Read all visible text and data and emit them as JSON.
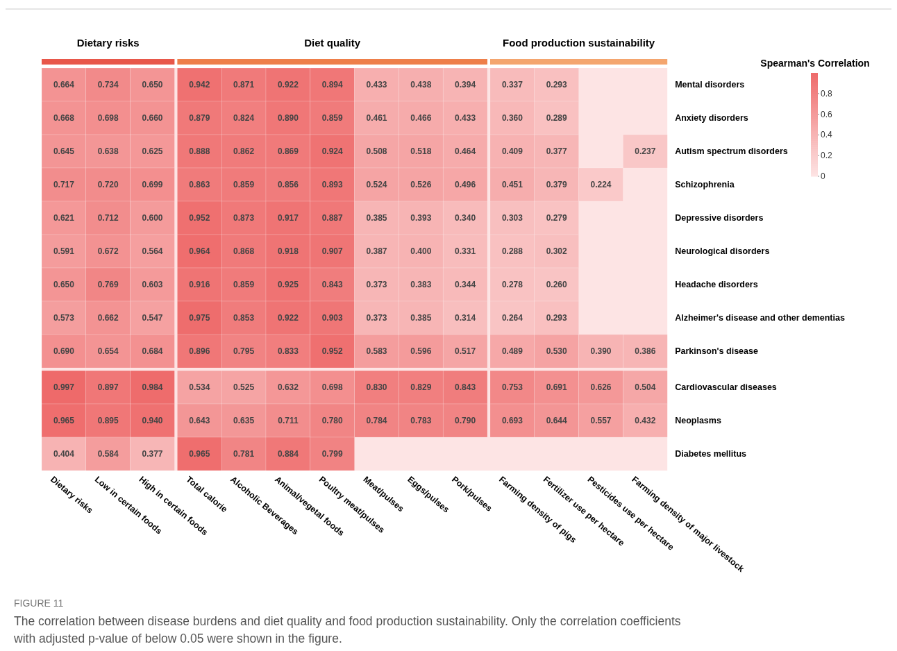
{
  "chart_data": {
    "type": "heatmap",
    "categories": [
      "Dietary risks",
      "Low in certain foods",
      "High in certain foods",
      "Total calorie",
      "Alcoholic Beverages",
      "Animal/vegetal foods",
      "Poultry meat/pulses",
      "Meat/pulses",
      "Eggs/pulses",
      "Pork/pulses",
      "Farming density of pigs",
      "Fertilizer use per hectare",
      "Pesticides use per hectare",
      "Farming density of major livestock"
    ],
    "y_categories": [
      "Mental disorders",
      "Anxiety disorders",
      "Autism spectrum disorders",
      "Schizophrenia",
      "Depressive disorders",
      "Neurological disorders",
      "Headache disorders",
      "Alzheimer's disease and other dementias",
      "Parkinson's disease",
      "Cardiovascular diseases",
      "Neoplasms",
      "Diabetes mellitus"
    ],
    "cells": [
      [
        0.664,
        0.734,
        0.65,
        0.942,
        0.871,
        0.922,
        0.894,
        0.433,
        0.438,
        0.394,
        0.337,
        0.293,
        null,
        null
      ],
      [
        0.668,
        0.698,
        0.66,
        0.879,
        0.824,
        0.89,
        0.859,
        0.461,
        0.466,
        0.433,
        0.36,
        0.289,
        null,
        null
      ],
      [
        0.645,
        0.638,
        0.625,
        0.888,
        0.862,
        0.869,
        0.924,
        0.508,
        0.518,
        0.464,
        0.409,
        0.377,
        null,
        0.237
      ],
      [
        0.717,
        0.72,
        0.699,
        0.863,
        0.859,
        0.856,
        0.893,
        0.524,
        0.526,
        0.496,
        0.451,
        0.379,
        0.224,
        null
      ],
      [
        0.621,
        0.712,
        0.6,
        0.952,
        0.873,
        0.917,
        0.887,
        0.385,
        0.393,
        0.34,
        0.303,
        0.279,
        null,
        null
      ],
      [
        0.591,
        0.672,
        0.564,
        0.964,
        0.868,
        0.918,
        0.907,
        0.387,
        0.4,
        0.331,
        0.288,
        0.302,
        null,
        null
      ],
      [
        0.65,
        0.769,
        0.603,
        0.916,
        0.859,
        0.925,
        0.843,
        0.373,
        0.383,
        0.344,
        0.278,
        0.26,
        null,
        null
      ],
      [
        0.573,
        0.662,
        0.547,
        0.975,
        0.853,
        0.922,
        0.903,
        0.373,
        0.385,
        0.314,
        0.264,
        0.293,
        null,
        null
      ],
      [
        0.69,
        0.654,
        0.684,
        0.896,
        0.795,
        0.833,
        0.952,
        0.583,
        0.596,
        0.517,
        0.489,
        0.53,
        0.39,
        0.386
      ],
      [
        0.997,
        0.897,
        0.984,
        0.534,
        0.525,
        0.632,
        0.698,
        0.83,
        0.829,
        0.843,
        0.753,
        0.691,
        0.626,
        0.504
      ],
      [
        0.965,
        0.895,
        0.94,
        0.643,
        0.635,
        0.711,
        0.78,
        0.784,
        0.783,
        0.79,
        0.693,
        0.644,
        0.557,
        0.432
      ],
      [
        0.404,
        0.584,
        0.377,
        0.965,
        0.781,
        0.884,
        0.799,
        null,
        null,
        null,
        null,
        null,
        null,
        null
      ]
    ],
    "cell_labels": [
      [
        "0.664",
        "0.734",
        "0.650",
        "0.942",
        "0.871",
        "0.922",
        "0.894",
        "0.433",
        "0.438",
        "0.394",
        "0.337",
        "0.293",
        null,
        null
      ],
      [
        "0.668",
        "0.698",
        "0.660",
        "0.879",
        "0.824",
        "0.890",
        "0.859",
        "0.461",
        "0.466",
        "0.433",
        "0.360",
        "0.289",
        null,
        null
      ],
      [
        "0.645",
        "0.638",
        "0.625",
        "0.888",
        "0.862",
        "0.869",
        "0.924",
        "0.508",
        "0.518",
        "0.464",
        "0.409",
        "0.377",
        null,
        "0.237"
      ],
      [
        "0.717",
        "0.720",
        "0.699",
        "0.863",
        "0.859",
        "0.856",
        "0.893",
        "0.524",
        "0.526",
        "0.496",
        "0.451",
        "0.379",
        "0.224",
        null
      ],
      [
        "0.621",
        "0.712",
        "0.600",
        "0.952",
        "0.873",
        "0.917",
        "0.887",
        "0.385",
        "0.393",
        "0.340",
        "0.303",
        "0.279",
        null,
        null
      ],
      [
        "0.591",
        "0.672",
        "0.564",
        "0.964",
        "0.868",
        "0.918",
        "0.907",
        "0.387",
        "0.400",
        "0.331",
        "0.288",
        "0.302",
        null,
        null
      ],
      [
        "0.650",
        "0.769",
        "0.603",
        "0.916",
        "0.859",
        "0.925",
        "0.843",
        "0.373",
        "0.383",
        "0.344",
        "0.278",
        "0.260",
        null,
        null
      ],
      [
        "0.573",
        "0.662",
        "0.547",
        "0.975",
        "0.853",
        "0.922",
        "0.903",
        "0.373",
        "0.385",
        "0.314",
        "0.264",
        "0.293",
        null,
        null
      ],
      [
        "0.690",
        "0.654",
        "0.684",
        "0.896",
        "0.795",
        "0.833",
        "0.952",
        "0.583",
        "0.596",
        "0.517",
        "0.489",
        "0.530",
        "0.390",
        "0.386"
      ],
      [
        "0.997",
        "0.897",
        "0.984",
        "0.534",
        "0.525",
        "0.632",
        "0.698",
        "0.830",
        "0.829",
        "0.843",
        "0.753",
        "0.691",
        "0.626",
        "0.504"
      ],
      [
        "0.965",
        "0.895",
        "0.940",
        "0.643",
        "0.635",
        "0.711",
        "0.780",
        "0.784",
        "0.783",
        "0.790",
        "0.693",
        "0.644",
        "0.557",
        "0.432"
      ],
      [
        "0.404",
        "0.584",
        "0.377",
        "0.965",
        "0.781",
        "0.884",
        "0.799",
        null,
        null,
        null,
        null,
        null,
        null,
        null
      ]
    ],
    "clabel": "Spearman's Correlation",
    "clim": [
      0,
      1
    ],
    "cticks": [
      0,
      0.2,
      0.4,
      0.6,
      0.8
    ],
    "annotations": [
      "Dietary risks",
      "Diet quality",
      "Food production sustainability",
      "FIGURE 11",
      "The correlation between disease burdens and diet quality and food production sustainability. Only the correlation coefficients with adjusted p-value of below 0.05 were shown in the figure."
    ]
  }
}
